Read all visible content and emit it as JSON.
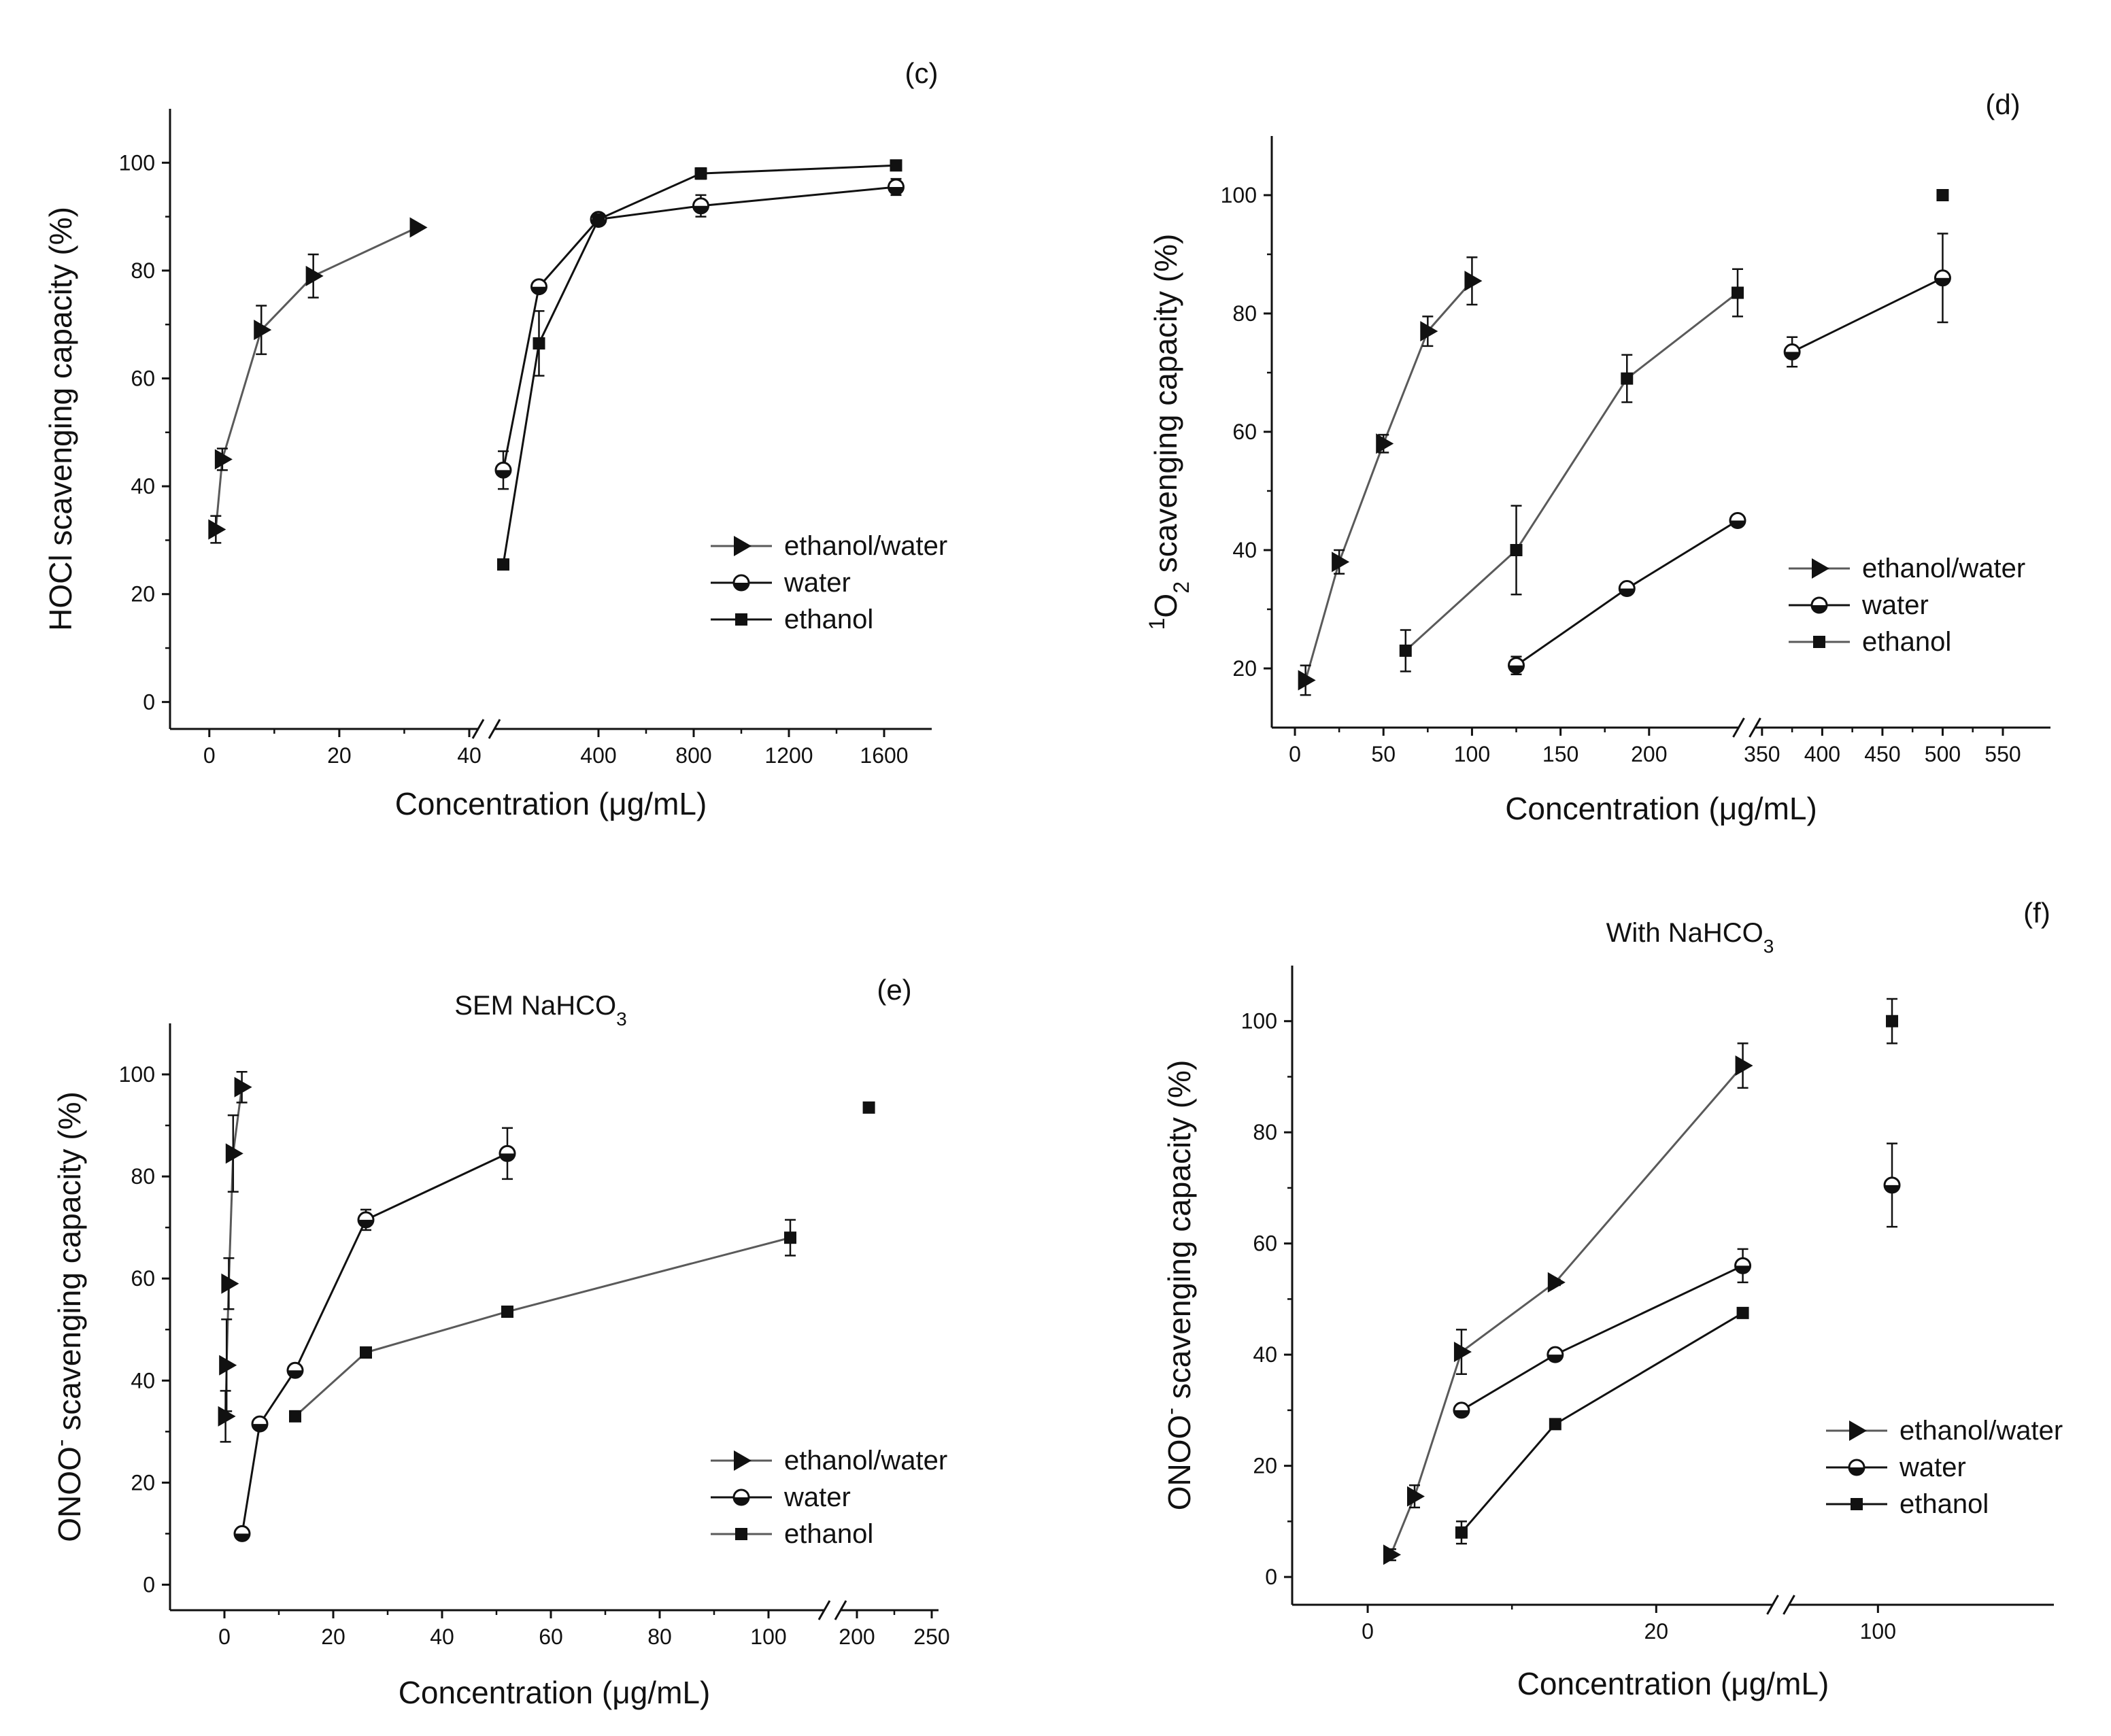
{
  "chart_data": [
    {
      "id": "c",
      "type": "line",
      "panel_label": "(c)",
      "title": "",
      "xlabel": "Concentration (μg/mL)",
      "ylabel": "HOCl scavenging capacity (%)",
      "ylim": [
        -5,
        110
      ],
      "yticks": [
        0,
        20,
        40,
        60,
        80,
        100
      ],
      "x_segments": [
        {
          "range": [
            -5,
            40
          ],
          "ticks": [
            0,
            20,
            40
          ],
          "tick_labels": [
            "0",
            "20",
            "40"
          ]
        },
        {
          "range": [
            0,
            1800
          ],
          "ticks": [
            400,
            800,
            1200,
            1600
          ],
          "tick_labels": [
            "400",
            "800",
            "1200",
            "1600"
          ]
        }
      ],
      "legend_position": "center-right",
      "series": [
        {
          "name": "ethanol/water",
          "marker": "triangle-right",
          "color": "#5a5a5a",
          "segment": 0,
          "x": [
            1,
            2,
            8,
            16,
            32
          ],
          "y": [
            32,
            45,
            69,
            79,
            88
          ],
          "err": [
            2.5,
            2,
            4.5,
            4,
            0
          ]
        },
        {
          "name": "water",
          "marker": "half-circle",
          "color": "#111111",
          "segment": 1,
          "x": [
            0,
            150,
            400,
            830,
            1650
          ],
          "y": [
            43,
            77,
            89.5,
            92,
            95.5
          ],
          "err": [
            3.5,
            1,
            1,
            2,
            1.5
          ]
        },
        {
          "name": "ethanol",
          "marker": "square",
          "color": "#111111",
          "segment": 1,
          "x": [
            0,
            150,
            400,
            830,
            1650
          ],
          "y": [
            25.5,
            66.5,
            89.5,
            98,
            99.5
          ],
          "err": [
            0,
            6,
            1,
            1,
            0.5
          ]
        }
      ]
    },
    {
      "id": "d",
      "type": "line",
      "panel_label": "(d)",
      "title": "",
      "xlabel": "Concentration (μg/mL)",
      "ylabel": "1O2 scavenging capacity (%)",
      "ylabel_parts": {
        "sup": "1",
        "main": "O",
        "sub": "2",
        "rest": " scavenging capacity (%)"
      },
      "ylim": [
        10,
        110
      ],
      "yticks": [
        20,
        40,
        60,
        80,
        100
      ],
      "x_segments": [
        {
          "range": [
            -10,
            250
          ],
          "ticks": [
            0,
            50,
            100,
            150,
            200
          ],
          "tick_labels": [
            "0",
            "50",
            "100",
            "150",
            "200"
          ]
        },
        {
          "range": [
            345,
            550
          ],
          "ticks": [
            350,
            400,
            450,
            500,
            550
          ],
          "tick_labels": [
            "350",
            "400",
            "450",
            "500",
            "550"
          ]
        }
      ],
      "legend_position": "center-right",
      "series": [
        {
          "name": "ethanol/water",
          "marker": "triangle-right",
          "color": "#5a5a5a",
          "segment": 0,
          "x": [
            6,
            25,
            50,
            75,
            100
          ],
          "y": [
            18,
            38,
            58,
            77,
            85.5
          ],
          "err": [
            2.5,
            2,
            1.5,
            2.5,
            4
          ]
        },
        {
          "name": "water",
          "marker": "half-circle",
          "color": "#111111",
          "segment": 0,
          "x": [
            125,
            187.5,
            250
          ],
          "y": [
            20.5,
            33.5,
            45
          ],
          "err": [
            1.5,
            0.5,
            0.5
          ]
        },
        {
          "name": "water",
          "marker": "half-circle",
          "color": "#111111",
          "segment": 1,
          "x": [
            375,
            500
          ],
          "y": [
            73.5,
            86
          ],
          "err": [
            2.5,
            7.5
          ]
        },
        {
          "name": "ethanol",
          "marker": "square",
          "color": "#5a5a5a",
          "segment": 0,
          "x": [
            62.5,
            125,
            187.5,
            250
          ],
          "y": [
            23,
            40,
            69,
            83.5
          ],
          "err": [
            3.5,
            7.5,
            4,
            4
          ]
        },
        {
          "name": "ethanol",
          "marker": "square",
          "color": "#5a5a5a",
          "segment": 1,
          "x": [
            500
          ],
          "y": [
            100
          ],
          "err": [
            0
          ]
        }
      ]
    },
    {
      "id": "e",
      "type": "line",
      "panel_label": "(e)",
      "title": "SEM NaHCO3",
      "title_parts": {
        "main": "SEM NaHCO",
        "sub": "3"
      },
      "xlabel": "Concentration (μg/mL)",
      "ylabel": "ONOO- scavenging capacity (%)",
      "ylabel_parts": {
        "main": "ONOO",
        "sup": "-",
        "rest": " scavenging capacity (%)"
      },
      "ylim": [
        -5,
        110
      ],
      "yticks": [
        0,
        20,
        40,
        60,
        80,
        100
      ],
      "x_segments": [
        {
          "range": [
            -10,
            110
          ],
          "ticks": [
            0,
            20,
            40,
            60,
            80,
            100
          ],
          "tick_labels": [
            "0",
            "20",
            "40",
            "60",
            "80",
            "100"
          ]
        },
        {
          "range": [
            190,
            250
          ],
          "ticks": [
            200,
            250
          ],
          "tick_labels": [
            "200",
            "250"
          ]
        }
      ],
      "legend_position": "bottom-right",
      "series": [
        {
          "name": "ethanol/water",
          "marker": "triangle-right",
          "color": "#5a5a5a",
          "segment": 0,
          "x": [
            0.2,
            0.4,
            0.8,
            1.6,
            3.2
          ],
          "y": [
            33,
            43,
            59,
            84.5,
            97.5
          ],
          "err": [
            5,
            9,
            5,
            7.5,
            3
          ]
        },
        {
          "name": "water",
          "marker": "half-circle",
          "color": "#111111",
          "segment": 0,
          "x": [
            3.25,
            6.5,
            13,
            26,
            52
          ],
          "y": [
            10,
            31.5,
            42,
            71.5,
            84.5
          ],
          "err": [
            0,
            0,
            0.5,
            2,
            5
          ]
        },
        {
          "name": "ethanol",
          "marker": "square",
          "color": "#5a5a5a",
          "segment": 0,
          "x": [
            13,
            26,
            52,
            104
          ],
          "y": [
            33,
            45.5,
            53.5,
            68
          ],
          "err": [
            0,
            1,
            0.5,
            3.5
          ]
        },
        {
          "name": "ethanol",
          "marker": "square",
          "color": "#5a5a5a",
          "segment": 1,
          "x": [
            208
          ],
          "y": [
            93.5
          ],
          "err": [
            0
          ]
        }
      ]
    },
    {
      "id": "f",
      "type": "line",
      "panel_label": "(f)",
      "title": "With NaHCO3",
      "title_parts": {
        "main": "With NaHCO",
        "sub": "3"
      },
      "xlabel": "Concentration (μg/mL)",
      "ylabel": "ONOO- scavenging capacity (%)",
      "ylabel_parts": {
        "main": "ONOO",
        "sup": "-",
        "rest": " scavenging capacity (%)"
      },
      "ylim": [
        -5,
        110
      ],
      "yticks": [
        0,
        20,
        40,
        60,
        80,
        100
      ],
      "x_segments": [
        {
          "range": [
            -5,
            28
          ],
          "ticks": [
            0,
            20
          ],
          "tick_labels": [
            "0",
            "20"
          ]
        },
        {
          "range": [
            75,
            150
          ],
          "ticks": [
            100
          ],
          "tick_labels": [
            "100"
          ]
        }
      ],
      "legend_position": "bottom-right",
      "series": [
        {
          "name": "ethanol/water",
          "marker": "triangle-right",
          "color": "#5a5a5a",
          "segment": 0,
          "x": [
            1.6,
            3.25,
            6.5,
            13,
            26
          ],
          "y": [
            4,
            14.5,
            40.5,
            53,
            92
          ],
          "err": [
            1,
            2,
            4,
            0.5,
            4
          ]
        },
        {
          "name": "water",
          "marker": "half-circle",
          "color": "#111111",
          "segment": 0,
          "x": [
            6.5,
            13,
            26
          ],
          "y": [
            30,
            40,
            56
          ],
          "err": [
            0.5,
            0.5,
            3
          ]
        },
        {
          "name": "water",
          "marker": "half-circle",
          "color": "#111111",
          "segment": 1,
          "x": [
            104
          ],
          "y": [
            70.5
          ],
          "err": [
            7.5
          ]
        },
        {
          "name": "ethanol",
          "marker": "square",
          "color": "#111111",
          "segment": 0,
          "x": [
            6.5,
            13,
            26
          ],
          "y": [
            8,
            27.5,
            47.5
          ],
          "err": [
            2,
            0,
            0
          ]
        },
        {
          "name": "ethanol",
          "marker": "square",
          "color": "#111111",
          "segment": 1,
          "x": [
            104
          ],
          "y": [
            100
          ],
          "err": [
            4
          ]
        }
      ]
    }
  ]
}
